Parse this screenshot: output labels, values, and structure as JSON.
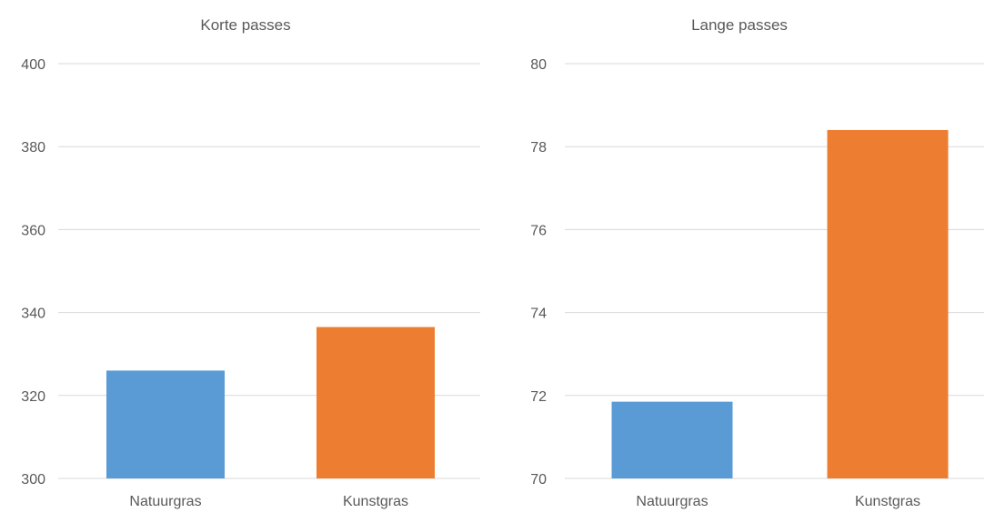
{
  "chart_data": [
    {
      "type": "bar",
      "title": "Korte passes",
      "categories": [
        "Natuurgras",
        "Kunstgras"
      ],
      "values": [
        326,
        336.5
      ],
      "colors": [
        "#5b9bd5",
        "#ed7d31"
      ],
      "ylim": [
        300,
        400
      ],
      "yticks": [
        300,
        320,
        340,
        360,
        380,
        400
      ],
      "grid": true,
      "xlabel": "",
      "ylabel": ""
    },
    {
      "type": "bar",
      "title": "Lange passes",
      "categories": [
        "Natuurgras",
        "Kunstgras"
      ],
      "values": [
        71.85,
        78.4
      ],
      "colors": [
        "#5b9bd5",
        "#ed7d31"
      ],
      "ylim": [
        70,
        80
      ],
      "yticks": [
        70,
        72,
        74,
        76,
        78,
        80
      ],
      "grid": true,
      "xlabel": "",
      "ylabel": ""
    }
  ]
}
